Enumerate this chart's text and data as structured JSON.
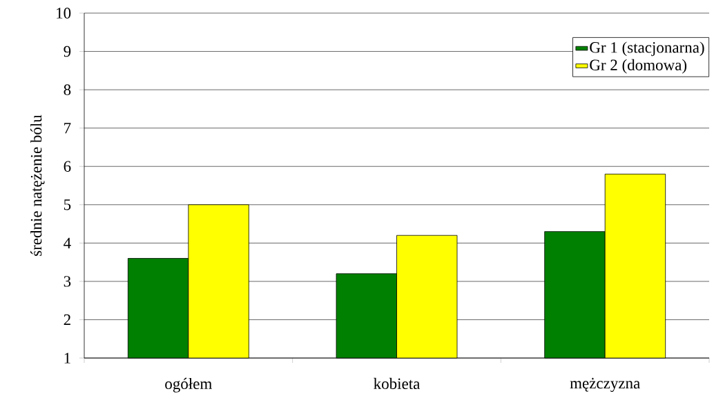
{
  "chart_data": {
    "type": "bar",
    "ylabel": "średnie natężenie bólu",
    "categories": [
      "ogółem",
      "kobieta",
      "mężczyzna"
    ],
    "series": [
      {
        "name": "Gr 1 (stacjonarna)",
        "color": "#008000",
        "values": [
          3.6,
          3.2,
          4.3
        ]
      },
      {
        "name": "Gr 2 (domowa)",
        "color": "#ffff00",
        "values": [
          5.0,
          4.2,
          5.8
        ]
      }
    ],
    "ylim": [
      1,
      10
    ],
    "yticks": [
      1,
      2,
      3,
      4,
      5,
      6,
      7,
      8,
      9,
      10
    ],
    "grid": "y",
    "legend": "top right"
  }
}
